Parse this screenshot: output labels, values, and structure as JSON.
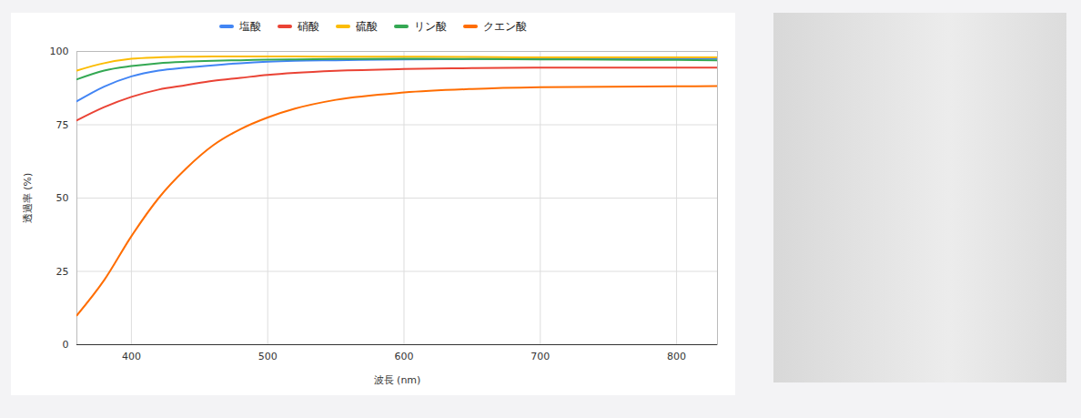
{
  "chart_data": {
    "type": "line",
    "x_label": "波長 (nm)",
    "y_label": "透過率 (%)",
    "x": [
      360,
      380,
      400,
      420,
      440,
      460,
      480,
      500,
      520,
      550,
      600,
      650,
      700,
      750,
      800,
      830
    ],
    "series": [
      {
        "name": "塩酸",
        "color": "#4285f4",
        "values": [
          83,
          88,
          91.5,
          93.5,
          94.5,
          95.3,
          96,
          96.5,
          96.8,
          97,
          97.3,
          97.4,
          97.5,
          97.5,
          97.5,
          97.5
        ]
      },
      {
        "name": "硝酸",
        "color": "#ea4335",
        "values": [
          76.5,
          81,
          84.5,
          87,
          88.5,
          90,
          91,
          92,
          92.7,
          93.4,
          94,
          94.3,
          94.5,
          94.5,
          94.5,
          94.5
        ]
      },
      {
        "name": "硫酸",
        "color": "#fbbc04",
        "values": [
          93.5,
          96,
          97.5,
          98,
          98.2,
          98.3,
          98.3,
          98.3,
          98.3,
          98.2,
          98.2,
          98.1,
          98,
          98,
          98,
          98
        ]
      },
      {
        "name": "リン酸",
        "color": "#34a853",
        "values": [
          90.5,
          93.5,
          95,
          96,
          96.5,
          96.8,
          97,
          97.2,
          97.3,
          97.4,
          97.5,
          97.4,
          97.3,
          97.2,
          97.1,
          97
        ]
      },
      {
        "name": "クエン酸",
        "color": "#ff6d01",
        "values": [
          10,
          22,
          37,
          50,
          60,
          68,
          73.5,
          77.5,
          80.5,
          83.5,
          86,
          87.2,
          87.8,
          88,
          88.1,
          88.2
        ]
      }
    ],
    "xlim": [
      360,
      830
    ],
    "xticks": [
      400,
      500,
      600,
      700,
      800
    ],
    "ylim": [
      0,
      100
    ],
    "yticks": [
      0,
      25,
      50,
      75,
      100
    ],
    "grid": true,
    "legend": "top"
  }
}
